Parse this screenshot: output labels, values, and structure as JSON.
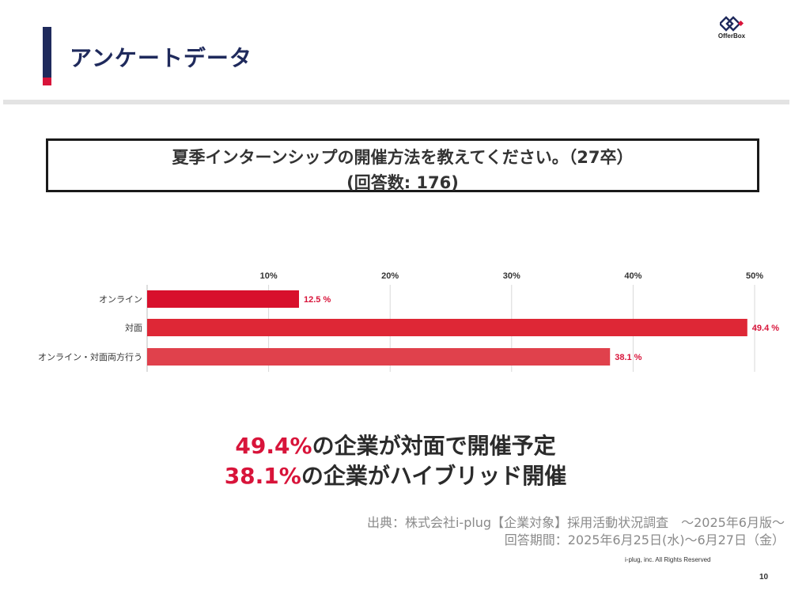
{
  "header": {
    "title": "アンケートデータ",
    "logo_text": "OfferBox"
  },
  "question": {
    "line1": "夏季インターンシップの開催方法を教えてください。（27卒）",
    "line2": "(回答数: 176)"
  },
  "chart_data": {
    "type": "bar",
    "orientation": "horizontal",
    "categories": [
      "オンライン",
      "対面",
      "オンライン・対面両方行う"
    ],
    "values": [
      12.5,
      49.4,
      38.1
    ],
    "value_labels": [
      "12.5 %",
      "49.4 %",
      "38.1 %"
    ],
    "x_ticks": [
      "10%",
      "20%",
      "30%",
      "40%",
      "50%"
    ],
    "x_tick_values": [
      10,
      20,
      30,
      40,
      50
    ],
    "xlim": [
      0,
      50
    ],
    "grid": true,
    "bar_colors": [
      "#d8102c",
      "#de2736",
      "#e0414c"
    ],
    "title": ""
  },
  "summary": {
    "line1_pct": "49.4%",
    "line1_text": "の企業が対面で開催予定",
    "line2_pct": "38.1%",
    "line2_text": "の企業がハイブリッド開催"
  },
  "source": {
    "line1": "出典：株式会社i-plug【企業対象】採用活動状況調査　～2025年6月版～",
    "line2": "回答期間：2025年6月25日(水)～6月27日（金）"
  },
  "footer": {
    "copyright": "i-plug, inc. All Rights Reserved",
    "page_number": "10"
  }
}
